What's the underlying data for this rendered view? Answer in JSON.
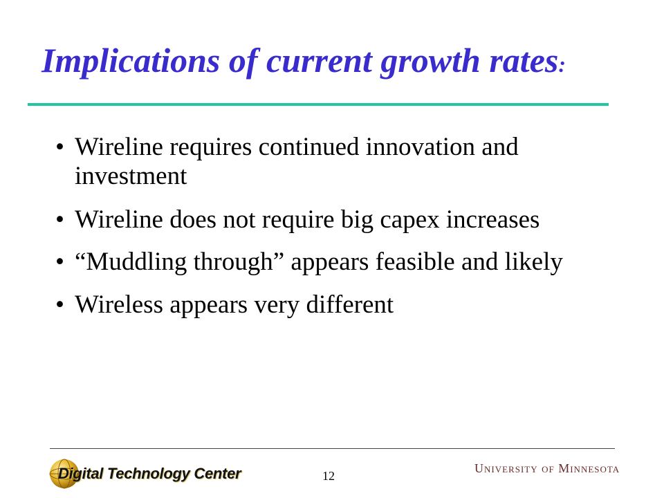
{
  "slide": {
    "title": "Implications of current growth rates",
    "title_suffix": ":",
    "bullet_glyph": "•",
    "bullets": [
      "Wireline requires continued innovation and investment",
      "Wireline does not require big capex increases",
      "“Muddling through” appears feasible and likely",
      "Wireless appears very different"
    ]
  },
  "footer": {
    "left_logo_text": "Digital Technology Center",
    "page_number": "12",
    "right_logo_text": "University of Minnesota"
  },
  "colors": {
    "title": "#3a2ccc",
    "title_rule": "#22c7a0",
    "umn_text": "#6b2a2a"
  }
}
